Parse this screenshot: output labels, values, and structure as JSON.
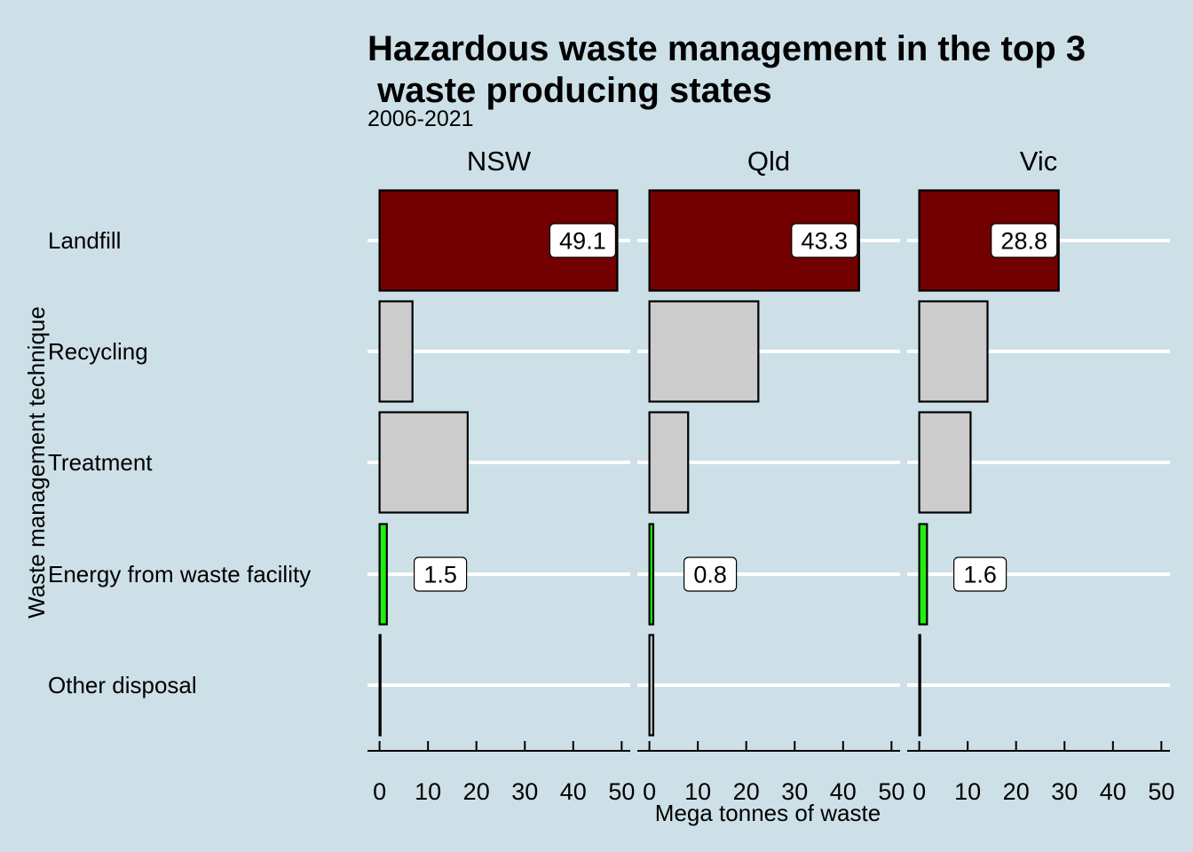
{
  "chart_data": {
    "type": "bar",
    "orientation": "horizontal",
    "title_line1": "Hazardous waste management in the top 3",
    "title_line2": " waste producing states",
    "subtitle": "2006-2021",
    "xlabel": "Mega tonnes of waste",
    "ylabel": "Waste management technique",
    "xlim": [
      0,
      50
    ],
    "xticks": [
      "0",
      "10",
      "20",
      "30",
      "40",
      "50"
    ],
    "categories": [
      "Landfill",
      "Recycling",
      "Treatment",
      "Energy from waste facility",
      "Other disposal"
    ],
    "facets": [
      {
        "name": "NSW",
        "values": [
          49.1,
          6.8,
          18.2,
          1.5,
          0.2
        ],
        "labels": [
          "49.1",
          null,
          null,
          "1.5",
          null
        ]
      },
      {
        "name": "Qld",
        "values": [
          43.3,
          22.5,
          8.0,
          0.8,
          0.8
        ],
        "labels": [
          "43.3",
          null,
          null,
          "0.8",
          null
        ]
      },
      {
        "name": "Vic",
        "values": [
          28.8,
          14.1,
          10.6,
          1.6,
          0.2
        ],
        "labels": [
          "28.8",
          null,
          null,
          "1.6",
          null
        ]
      }
    ],
    "colors": {
      "Landfill": "#730000",
      "Recycling": "#cccccc",
      "Treatment": "#cccccc",
      "Energy from waste facility": "#22ee11",
      "Other disposal": "#cccccc"
    },
    "background": "#cde0e8",
    "gridline_color": "#ffffff",
    "grid": true,
    "legend": "none"
  }
}
